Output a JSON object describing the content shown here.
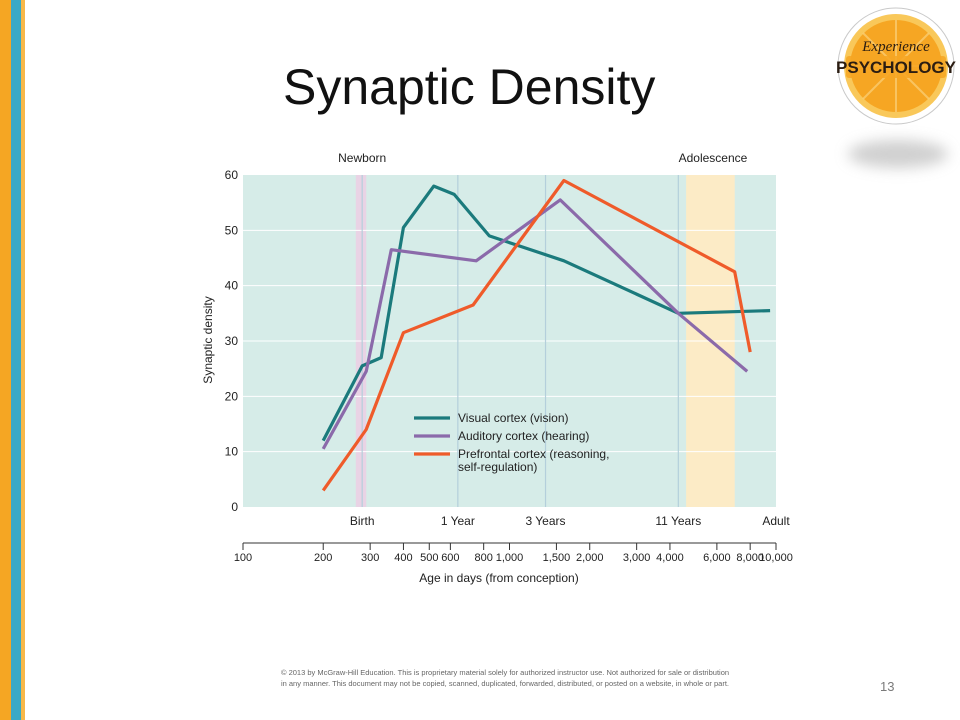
{
  "slide": {
    "title": "Synaptic Density",
    "page_number": "13",
    "copyright": "© 2013 by McGraw-Hill Education. This is proprietary material solely for authorized instructor use. Not authorized for sale or distribution in any manner. This document may not be copied, scanned, duplicated, forwarded, distributed, or posted on a website, in whole or part."
  },
  "logo": {
    "line1": "Experience",
    "line2": "PSYCHOLOGY",
    "colors": {
      "orange": "#f6a623",
      "ring": "#f9c85a",
      "text": "#2b1d12"
    }
  },
  "colors": {
    "plot_bg": "#d6ece8",
    "newborn_band": "#e9d3e5",
    "adolescence_band": "#fcebc6",
    "gridline": "#b4cfdb",
    "stripe_orange": "#f5a623",
    "stripe_teal": "#3aa9c6"
  },
  "chart_data": {
    "type": "line",
    "ylabel": "Synaptic density",
    "xlabel": "Age in days (from conception)",
    "x_scale": "log",
    "xlim": [
      100,
      10000
    ],
    "ylim": [
      0,
      60
    ],
    "y_ticks": [
      0,
      10,
      20,
      30,
      40,
      50,
      60
    ],
    "x_ticks": [
      {
        "value": 100,
        "label": "100"
      },
      {
        "value": 200,
        "label": "200"
      },
      {
        "value": 300,
        "label": "300"
      },
      {
        "value": 400,
        "label": "400"
      },
      {
        "value": 500,
        "label": "500"
      },
      {
        "value": 600,
        "label": "600"
      },
      {
        "value": 800,
        "label": "800"
      },
      {
        "value": 1000,
        "label": "1,000"
      },
      {
        "value": 1500,
        "label": "1,500"
      },
      {
        "value": 2000,
        "label": "2,000"
      },
      {
        "value": 3000,
        "label": "3,000"
      },
      {
        "value": 4000,
        "label": "4,000"
      },
      {
        "value": 6000,
        "label": "6,000"
      },
      {
        "value": 8000,
        "label": "8,000"
      },
      {
        "value": 10000,
        "label": "10,000"
      }
    ],
    "milestones": [
      {
        "label": "Birth",
        "x": 280
      },
      {
        "label": "1 Year",
        "x": 640
      },
      {
        "label": "3 Years",
        "x": 1365
      },
      {
        "label": "11 Years",
        "x": 4300
      },
      {
        "label": "Adult",
        "x": 10000
      }
    ],
    "x_grid": [
      280,
      640,
      1365,
      4300
    ],
    "y_grid": [
      10,
      20,
      30,
      40,
      50
    ],
    "annotations": [
      {
        "label": "Newborn",
        "x": 280
      },
      {
        "label": "Adolescence",
        "x": 5800
      }
    ],
    "bands": [
      {
        "name": "Newborn",
        "x0": 265,
        "x1": 290
      },
      {
        "name": "Adolescence",
        "x0": 4600,
        "x1": 7000
      }
    ],
    "series": [
      {
        "name": "Visual cortex (vision)",
        "color": "#1b7a7c",
        "points": [
          [
            200,
            12
          ],
          [
            280,
            25.5
          ],
          [
            330,
            27
          ],
          [
            400,
            50.5
          ],
          [
            520,
            58
          ],
          [
            620,
            56.5
          ],
          [
            840,
            49
          ],
          [
            1600,
            44.5
          ],
          [
            4300,
            35
          ],
          [
            9500,
            35.5
          ]
        ]
      },
      {
        "name": "Auditory cortex (hearing)",
        "color": "#8b6aaa",
        "points": [
          [
            200,
            10.5
          ],
          [
            290,
            24.5
          ],
          [
            360,
            46.5
          ],
          [
            750,
            44.5
          ],
          [
            1550,
            55.5
          ],
          [
            4300,
            35
          ],
          [
            7800,
            24.5
          ]
        ]
      },
      {
        "name": "Prefrontal cortex (reasoning, self-regulation)",
        "legend_lines": [
          "Prefrontal cortex (reasoning,",
          "self-regulation)"
        ],
        "color": "#ef5b2a",
        "points": [
          [
            200,
            3
          ],
          [
            290,
            14
          ],
          [
            400,
            31.5
          ],
          [
            730,
            36.5
          ],
          [
            1600,
            59
          ],
          [
            7000,
            42.5
          ],
          [
            8000,
            28
          ]
        ]
      }
    ],
    "legend": {
      "position": "center-right"
    }
  }
}
